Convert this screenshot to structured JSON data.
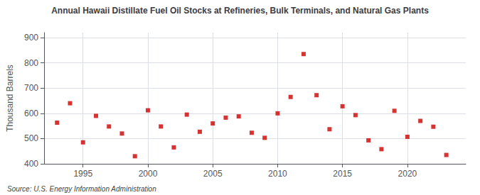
{
  "chart_data": {
    "type": "scatter",
    "title": "Annual Hawaii Distillate Fuel Oil Stocks at Refineries, Bulk Terminals, and Natural Gas Plants",
    "ylabel": "Thousand Barrels",
    "source": "Source: U.S. Energy Information Administration",
    "x": [
      1993,
      1994,
      1995,
      1996,
      1997,
      1998,
      1999,
      2000,
      2001,
      2002,
      2003,
      2004,
      2005,
      2006,
      2007,
      2008,
      2009,
      2010,
      2011,
      2012,
      2013,
      2014,
      2015,
      2016,
      2017,
      2018,
      2019,
      2020,
      2021,
      2022,
      2023
    ],
    "values": [
      563,
      640,
      485,
      590,
      548,
      520,
      430,
      612,
      548,
      465,
      595,
      527,
      560,
      583,
      588,
      523,
      503,
      600,
      665,
      835,
      672,
      537,
      628,
      593,
      493,
      458,
      610,
      507,
      570,
      547,
      435
    ],
    "color": "#cc0000",
    "marker": "square",
    "xlim": [
      1992.0,
      2024.5
    ],
    "xticks": [
      1995,
      2000,
      2005,
      2010,
      2015,
      2020
    ],
    "ylim": [
      400,
      920
    ],
    "yticks": [
      400,
      500,
      600,
      700,
      800,
      900
    ],
    "grid": true
  }
}
